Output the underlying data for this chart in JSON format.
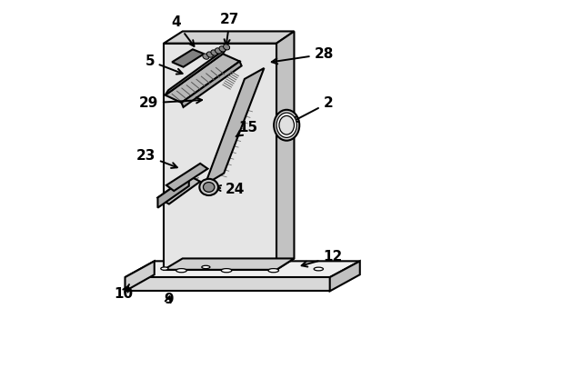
{
  "bg_color": "#ffffff",
  "line_color": "#000000",
  "line_width": 1.5
}
